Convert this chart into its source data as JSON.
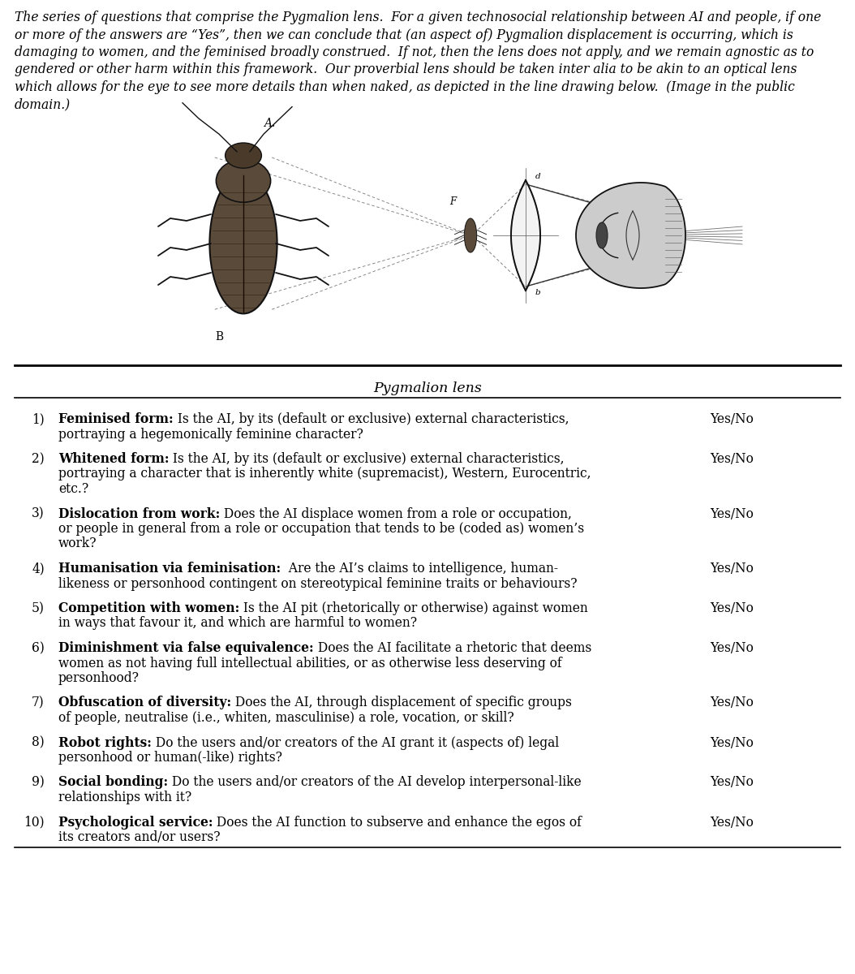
{
  "background_color": "#ffffff",
  "intro_text_lines": [
    "The series of questions that comprise the Pygmalion lens.  For a given technosocial relationship between AI and people, if one",
    "or more of the answers are “Yes”, then we can conclude that (an aspect of) Pygmalion displacement is occurring, which is",
    "damaging to women, and the feminised broadly construed.  If not, then the lens does not apply, and we remain agnostic as to",
    "gendered or other harm within this framework.  Our proverbial lens should be taken inter alia to be akin to an optical lens",
    "which allows for the eye to see more details than when naked, as depicted in the line drawing below.  (Image in the public",
    "domain.)"
  ],
  "table_title": "Pygmalion lens",
  "rows": [
    {
      "num": "1)",
      "bold": "Feminised form:",
      "text": " Is the AI, by its (default or exclusive) external characteristics,\nportraying a hegemonically feminine character?",
      "answer": "Yes/No",
      "nlines": 2
    },
    {
      "num": "2)",
      "bold": "Whitened form:",
      "text": " Is the AI, by its (default or exclusive) external characteristics,\nportraying a character that is inherently white (supremacist), Western, Eurocentric,\netc.?",
      "answer": "Yes/No",
      "nlines": 3
    },
    {
      "num": "3)",
      "bold": "Dislocation from work:",
      "text": " Does the AI displace women from a role or occupation,\nor people in general from a role or occupation that tends to be (coded as) women’s\nwork?",
      "answer": "Yes/No",
      "nlines": 3
    },
    {
      "num": "4)",
      "bold": "Humanisation via feminisation:",
      "text": "  Are the AI’s claims to intelligence, human-\nlikeness or personhood contingent on stereotypical feminine traits or behaviours?",
      "answer": "Yes/No",
      "nlines": 2
    },
    {
      "num": "5)",
      "bold": "Competition with women:",
      "text": " Is the AI pit (rhetorically or otherwise) against women\nin ways that favour it, and which are harmful to women?",
      "answer": "Yes/No",
      "nlines": 2
    },
    {
      "num": "6)",
      "bold": "Diminishment via false equivalence:",
      "text": " Does the AI facilitate a rhetoric that deems\nwomen as not having full intellectual abilities, or as otherwise less deserving of\npersonhood?",
      "answer": "Yes/No",
      "nlines": 3
    },
    {
      "num": "7)",
      "bold": "Obfuscation of diversity:",
      "text": " Does the AI, through displacement of specific groups\nof people, neutralise (i.e., whiten, masculinise) a role, vocation, or skill?",
      "answer": "Yes/No",
      "nlines": 2
    },
    {
      "num": "8)",
      "bold": "Robot rights:",
      "text": " Do the users and/or creators of the AI grant it (aspects of) legal\npersonhood or human(-like) rights?",
      "answer": "Yes/No",
      "nlines": 2
    },
    {
      "num": "9)",
      "bold": "Social bonding:",
      "text": " Do the users and/or creators of the AI develop interpersonal-like\nrelationships with it?",
      "answer": "Yes/No",
      "nlines": 2
    },
    {
      "num": "10)",
      "bold": "Psychological service:",
      "text": " Does the AI function to subserve and enhance the egos of\nits creators and/or users?",
      "answer": "Yes/No",
      "nlines": 2
    }
  ],
  "font_size_intro": 11.2,
  "font_size_table_title": 12.5,
  "font_size_table": 11.2,
  "text_color": "#000000",
  "line_color": "#000000"
}
